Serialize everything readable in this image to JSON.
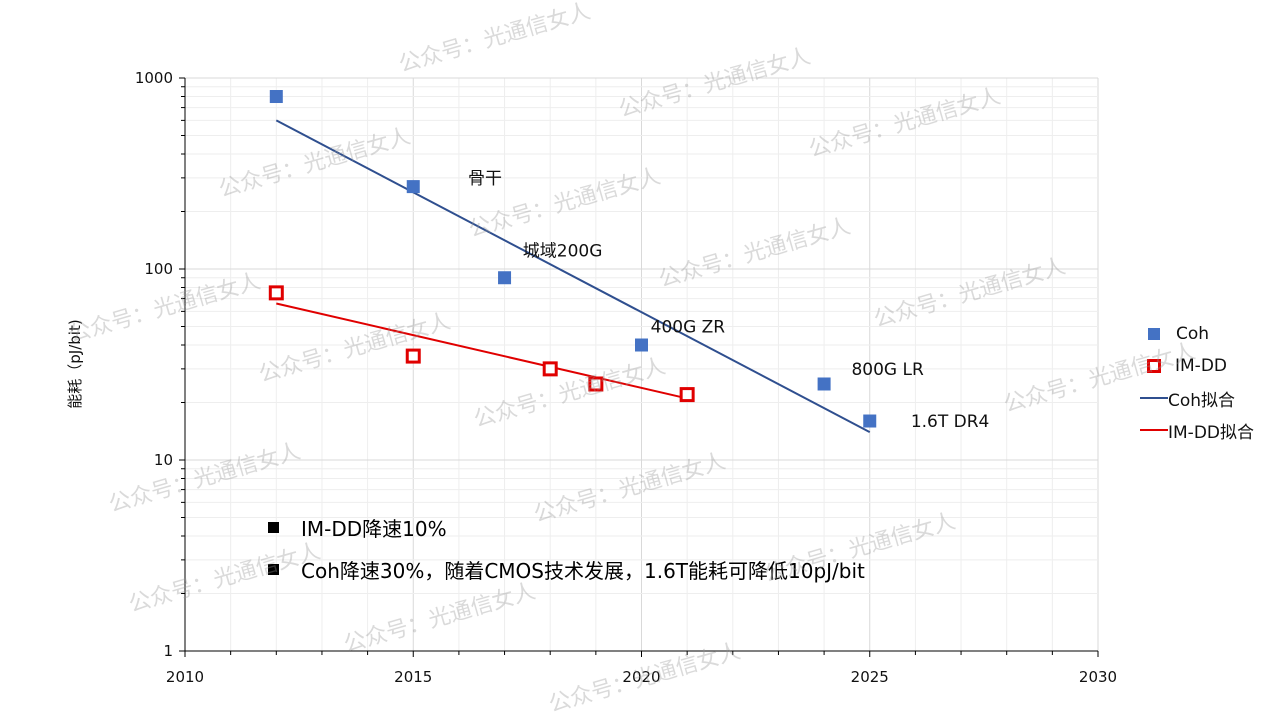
{
  "chart_data": {
    "type": "scatter",
    "xlabel": "",
    "ylabel": "能耗（pJ/bit)",
    "xlim": [
      2010,
      2030
    ],
    "ylim": [
      1,
      1000
    ],
    "yscale": "log",
    "x_ticks": [
      "2010",
      "2015",
      "2020",
      "2025",
      "2030"
    ],
    "y_ticks": [
      "1",
      "10",
      "100",
      "1000"
    ],
    "grid": true,
    "legend_placement": "right",
    "series": [
      {
        "name": "Coh",
        "kind": "marker",
        "color": "#4472C4",
        "points": [
          [
            2012,
            800
          ],
          [
            2015,
            270
          ],
          [
            2017,
            90
          ],
          [
            2020,
            40
          ],
          [
            2024,
            25
          ],
          [
            2025,
            16
          ]
        ]
      },
      {
        "name": "IM-DD",
        "kind": "hollow-marker",
        "color": "#E00000",
        "points": [
          [
            2012,
            75
          ],
          [
            2015,
            35
          ],
          [
            2018,
            30
          ],
          [
            2019,
            25
          ],
          [
            2021,
            22
          ]
        ]
      },
      {
        "name": "Coh拟合",
        "kind": "line",
        "color": "#2F4F8F",
        "points": [
          [
            2012,
            600
          ],
          [
            2025,
            14
          ]
        ]
      },
      {
        "name": "IM-DD拟合",
        "kind": "line",
        "color": "#E00000",
        "points": [
          [
            2012,
            66
          ],
          [
            2021,
            21
          ]
        ]
      }
    ],
    "annotations": [
      {
        "text": "骨干",
        "x": 2016.2,
        "y": 300
      },
      {
        "text": "城域200G",
        "x": 2017.4,
        "y": 125
      },
      {
        "text": "400G ZR",
        "x": 2020.2,
        "y": 50
      },
      {
        "text": "800G LR",
        "x": 2024.6,
        "y": 30
      },
      {
        "text": "1.6T DR4",
        "x": 2025.9,
        "y": 16
      }
    ]
  },
  "notes": [
    "IM-DD降速10%",
    "Coh降速30%，随着CMOS技术发展，1.6T能耗可降低10pJ/bit"
  ],
  "watermark": "公众号：光通信女人"
}
